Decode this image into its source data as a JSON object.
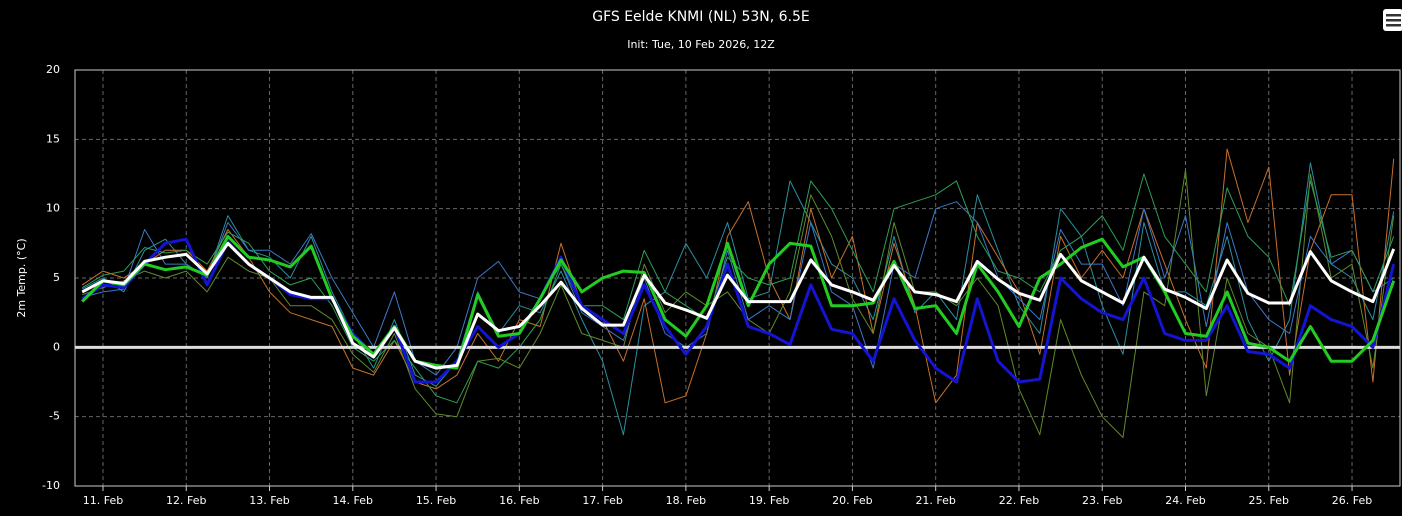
{
  "chart_data": {
    "type": "line",
    "title": "GFS Eelde KNMI (NL) 53N, 6.5E",
    "subtitle": "Init: Tue, 10 Feb 2026, 12Z",
    "y_label": "2m Temp. (°C)",
    "x": [
      10.75,
      11,
      11.25,
      11.5,
      11.75,
      12,
      12.25,
      12.5,
      12.75,
      13,
      13.25,
      13.5,
      13.75,
      14,
      14.25,
      14.5,
      14.75,
      15,
      15.25,
      15.5,
      15.75,
      16,
      16.25,
      16.5,
      16.75,
      17,
      17.25,
      17.5,
      17.75,
      18,
      18.25,
      18.5,
      18.75,
      19,
      19.25,
      19.5,
      19.75,
      20,
      20.25,
      20.5,
      20.75,
      21,
      21.25,
      21.5,
      21.75,
      22,
      22.25,
      22.5,
      22.75,
      23,
      23.25,
      23.5,
      23.75,
      24,
      24.25,
      24.5,
      24.75,
      25,
      25.25,
      25.5,
      25.75,
      26,
      26.25,
      26.5
    ],
    "xlim": [
      10.664,
      26.576
    ],
    "xticks": [
      {
        "value": 11,
        "label": "11. Feb"
      },
      {
        "value": 12,
        "label": "12. Feb"
      },
      {
        "value": 13,
        "label": "13. Feb"
      },
      {
        "value": 14,
        "label": "14. Feb"
      },
      {
        "value": 15,
        "label": "15. Feb"
      },
      {
        "value": 16,
        "label": "16. Feb"
      },
      {
        "value": 17,
        "label": "17. Feb"
      },
      {
        "value": 18,
        "label": "18. Feb"
      },
      {
        "value": 19,
        "label": "19. Feb"
      },
      {
        "value": 20,
        "label": "20. Feb"
      },
      {
        "value": 21,
        "label": "21. Feb"
      },
      {
        "value": 22,
        "label": "22. Feb"
      },
      {
        "value": 23,
        "label": "23. Feb"
      },
      {
        "value": 24,
        "label": "24. Feb"
      },
      {
        "value": 25,
        "label": "25. Feb"
      },
      {
        "value": 26,
        "label": "26. Feb"
      }
    ],
    "ylim": [
      -10,
      20
    ],
    "yticks": [
      -10,
      -5,
      0,
      5,
      10,
      15,
      20
    ],
    "grid": true,
    "plot_line": 0,
    "members": [
      {
        "color": "#2a8fa0",
        "values": [
          4.2,
          5.0,
          4.0,
          7.0,
          7.8,
          6.0,
          5.0,
          9.5,
          7.0,
          6.5,
          5.0,
          8.0,
          4.0,
          1.0,
          -1.5,
          2.0,
          -2.0,
          -2.8,
          -1.0,
          4.0,
          1.0,
          3.0,
          2.5,
          5.5,
          2.0,
          -1.0,
          -6.3,
          3.0,
          4.0,
          7.5,
          5.0,
          9.0,
          3.5,
          4.0,
          12.0,
          9.0,
          6.0,
          5.0,
          2.0,
          8.0,
          2.5,
          4.0,
          2.0,
          11.0,
          7.0,
          3.0,
          1.0,
          10.0,
          8.0,
          3.0,
          -0.5,
          9.0,
          4.0,
          4.0,
          3.0,
          8.0,
          2.0,
          -1.0,
          2.0,
          13.3,
          6.0,
          5.0,
          2.0,
          9.8
        ]
      },
      {
        "color": "#c8702a",
        "values": [
          4.5,
          5.5,
          5.0,
          6.0,
          7.0,
          7.0,
          5.5,
          8.5,
          6.5,
          4.0,
          2.5,
          2.0,
          1.5,
          -1.5,
          -2.0,
          0.5,
          -2.5,
          -3.0,
          -2.0,
          1.0,
          -1.0,
          2.0,
          1.5,
          7.5,
          3.0,
          2.0,
          -1.0,
          3.5,
          -4.0,
          -3.5,
          1.0,
          8.0,
          10.5,
          5.0,
          2.0,
          10.0,
          5.0,
          8.0,
          1.0,
          7.5,
          3.0,
          -4.0,
          -2.0,
          9.0,
          6.5,
          4.0,
          -0.5,
          8.0,
          5.0,
          7.0,
          5.0,
          10.0,
          6.0,
          2.0,
          -1.5,
          14.3,
          9.0,
          13.0,
          -2.0,
          7.0,
          11.0,
          11.0,
          -2.5,
          13.6
        ]
      },
      {
        "color": "#5f8a2a",
        "values": [
          3.8,
          4.3,
          4.8,
          5.5,
          5.0,
          5.5,
          4.0,
          6.5,
          5.5,
          5.0,
          3.0,
          3.0,
          2.0,
          -0.5,
          -1.8,
          1.0,
          -3.0,
          -4.8,
          -5.0,
          -1.0,
          -0.8,
          -1.5,
          1.0,
          4.5,
          1.0,
          0.5,
          0.0,
          6.0,
          2.5,
          4.0,
          3.0,
          4.0,
          2.0,
          1.0,
          4.0,
          11.0,
          8.0,
          3.5,
          1.0,
          9.0,
          4.0,
          4.0,
          3.0,
          5.0,
          3.0,
          -3.0,
          -6.3,
          2.0,
          -2.0,
          -5.0,
          -6.5,
          4.0,
          3.0,
          12.8,
          -3.5,
          5.0,
          1.0,
          0.0,
          -4.0,
          12.5,
          5.0,
          6.0,
          -1.5,
          9.5
        ]
      },
      {
        "color": "#3c78c8",
        "values": [
          3.6,
          4.0,
          4.2,
          8.5,
          6.0,
          6.0,
          5.0,
          9.0,
          7.0,
          7.0,
          6.0,
          8.2,
          5.0,
          2.5,
          0.0,
          4.0,
          -1.0,
          -2.0,
          0.0,
          5.0,
          6.2,
          4.0,
          3.5,
          6.0,
          2.5,
          1.5,
          0.5,
          5.0,
          1.0,
          0.0,
          1.0,
          7.0,
          2.0,
          3.0,
          2.0,
          9.0,
          4.0,
          3.0,
          -1.5,
          6.0,
          5.0,
          10.0,
          10.5,
          9.0,
          5.0,
          3.5,
          2.0,
          8.5,
          6.0,
          6.0,
          3.0,
          10.0,
          5.0,
          9.5,
          1.5,
          9.0,
          4.0,
          2.0,
          1.0,
          8.0,
          6.0,
          7.0,
          4.0,
          5.0
        ]
      },
      {
        "color": "#2e9e57",
        "values": [
          4.3,
          5.2,
          5.5,
          7.2,
          6.8,
          7.0,
          6.0,
          8.3,
          7.5,
          5.5,
          4.5,
          5.0,
          3.0,
          0.0,
          -1.0,
          0.5,
          -1.5,
          -3.5,
          -4.0,
          -1.0,
          -1.5,
          0.0,
          2.0,
          6.0,
          3.0,
          3.0,
          2.0,
          7.0,
          4.0,
          3.0,
          2.0,
          6.5,
          5.0,
          4.5,
          5.0,
          12.0,
          10.0,
          7.0,
          4.0,
          10.0,
          10.5,
          11.0,
          12.0,
          8.0,
          5.5,
          5.0,
          4.0,
          7.0,
          8.0,
          9.5,
          7.0,
          12.5,
          8.0,
          6.0,
          4.0,
          11.5,
          8.0,
          6.5,
          3.0,
          12.0,
          6.5,
          7.0,
          4.0,
          8.0
        ]
      }
    ],
    "series": [
      {
        "color": "#1414d2",
        "values": [
          3.5,
          4.5,
          4.3,
          6.0,
          7.5,
          7.8,
          4.5,
          7.6,
          6.0,
          5.0,
          3.8,
          3.5,
          3.5,
          1.0,
          -0.5,
          1.5,
          -2.5,
          -2.5,
          -1.0,
          1.5,
          0.0,
          1.0,
          3.5,
          6.5,
          3.0,
          2.0,
          1.0,
          4.5,
          1.5,
          -0.5,
          1.5,
          6.0,
          1.5,
          1.0,
          0.2,
          4.5,
          1.3,
          1.0,
          -1.0,
          3.5,
          0.5,
          -1.5,
          -2.5,
          3.5,
          -1.0,
          -2.5,
          -2.3,
          5.0,
          3.5,
          2.5,
          2.0,
          5.0,
          1.0,
          0.5,
          0.5,
          3.0,
          -0.3,
          -0.5,
          -1.5,
          3.0,
          2.0,
          1.5,
          0.0,
          6.0
        ]
      },
      {
        "color": "#22cc22",
        "values": [
          3.3,
          4.8,
          4.5,
          6.0,
          5.6,
          5.8,
          5.2,
          8.0,
          6.5,
          6.3,
          5.8,
          7.3,
          3.5,
          0.8,
          -0.5,
          1.5,
          -1.0,
          -1.3,
          -1.5,
          3.8,
          0.8,
          1.0,
          3.5,
          6.3,
          4.0,
          5.0,
          5.5,
          5.4,
          2.0,
          0.8,
          3.0,
          7.5,
          3.0,
          6.0,
          7.5,
          7.3,
          3.0,
          3.0,
          3.2,
          6.2,
          2.8,
          3.0,
          1.0,
          6.0,
          4.0,
          1.5,
          5.0,
          6.0,
          7.2,
          7.8,
          5.8,
          6.5,
          4.0,
          1.0,
          0.8,
          4.0,
          0.3,
          0.0,
          -1.0,
          1.5,
          -1.0,
          -1.0,
          0.5,
          4.8
        ]
      },
      {
        "color": "#ffffff",
        "values": [
          4.0,
          4.8,
          4.6,
          6.2,
          6.5,
          6.7,
          5.3,
          7.5,
          6.0,
          5.0,
          4.0,
          3.6,
          3.6,
          0.3,
          -0.7,
          1.4,
          -1.0,
          -1.5,
          -1.3,
          2.4,
          1.2,
          1.5,
          3.0,
          4.7,
          2.8,
          1.6,
          1.6,
          5.2,
          3.2,
          2.7,
          2.1,
          5.2,
          3.3,
          3.3,
          3.3,
          6.3,
          4.5,
          4.0,
          3.4,
          5.9,
          4.0,
          3.8,
          3.3,
          6.2,
          4.9,
          3.9,
          3.4,
          6.7,
          4.8,
          4.0,
          3.2,
          6.5,
          4.2,
          3.6,
          2.8,
          6.3,
          3.9,
          3.2,
          3.2,
          6.9,
          4.8,
          4.0,
          3.3,
          7.1
        ]
      }
    ]
  }
}
